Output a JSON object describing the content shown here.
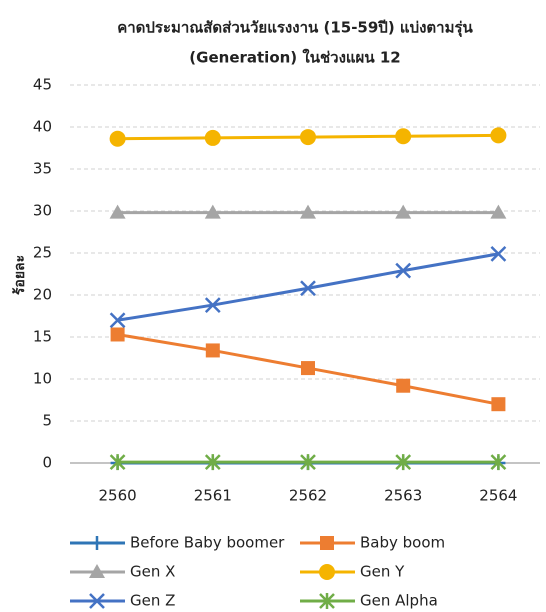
{
  "chart_data": {
    "type": "line",
    "title": [
      "คาดประมาณสัดส่วนวัยแรงงาน (15-59ปี) แบ่งตามรุ่น",
      "(Generation) ในช่วงแผน 12"
    ],
    "y_label": "ร้อยละ",
    "categories": [
      "2560",
      "2561",
      "2562",
      "2563",
      "2564"
    ],
    "series": [
      {
        "name": "Before Baby boomer",
        "color": "#2e75b6",
        "marker": "plus",
        "values": [
          0,
          0,
          0,
          0,
          0
        ]
      },
      {
        "name": "Baby boom",
        "color": "#ed7d31",
        "marker": "square",
        "values": [
          15.3,
          13.4,
          11.3,
          9.2,
          7.0
        ]
      },
      {
        "name": "Gen X",
        "color": "#a5a5a5",
        "marker": "triangle",
        "values": [
          29.8,
          29.8,
          29.8,
          29.8,
          29.8
        ]
      },
      {
        "name": "Gen Y",
        "color": "#f5b400",
        "marker": "circle",
        "values": [
          38.6,
          38.7,
          38.8,
          38.9,
          39.0
        ]
      },
      {
        "name": "Gen Z",
        "color": "#4472c4",
        "marker": "x",
        "values": [
          17.0,
          18.8,
          20.8,
          22.9,
          24.9
        ]
      },
      {
        "name": "Gen Alpha",
        "color": "#70ad47",
        "marker": "asterisk",
        "values": [
          0.1,
          0.1,
          0.1,
          0.1,
          0.1
        ]
      }
    ],
    "ylim": [
      0,
      45
    ],
    "yticks": [
      0,
      5,
      10,
      15,
      20,
      25,
      30,
      35,
      40,
      45
    ],
    "grid": true,
    "legend": "bottom"
  }
}
